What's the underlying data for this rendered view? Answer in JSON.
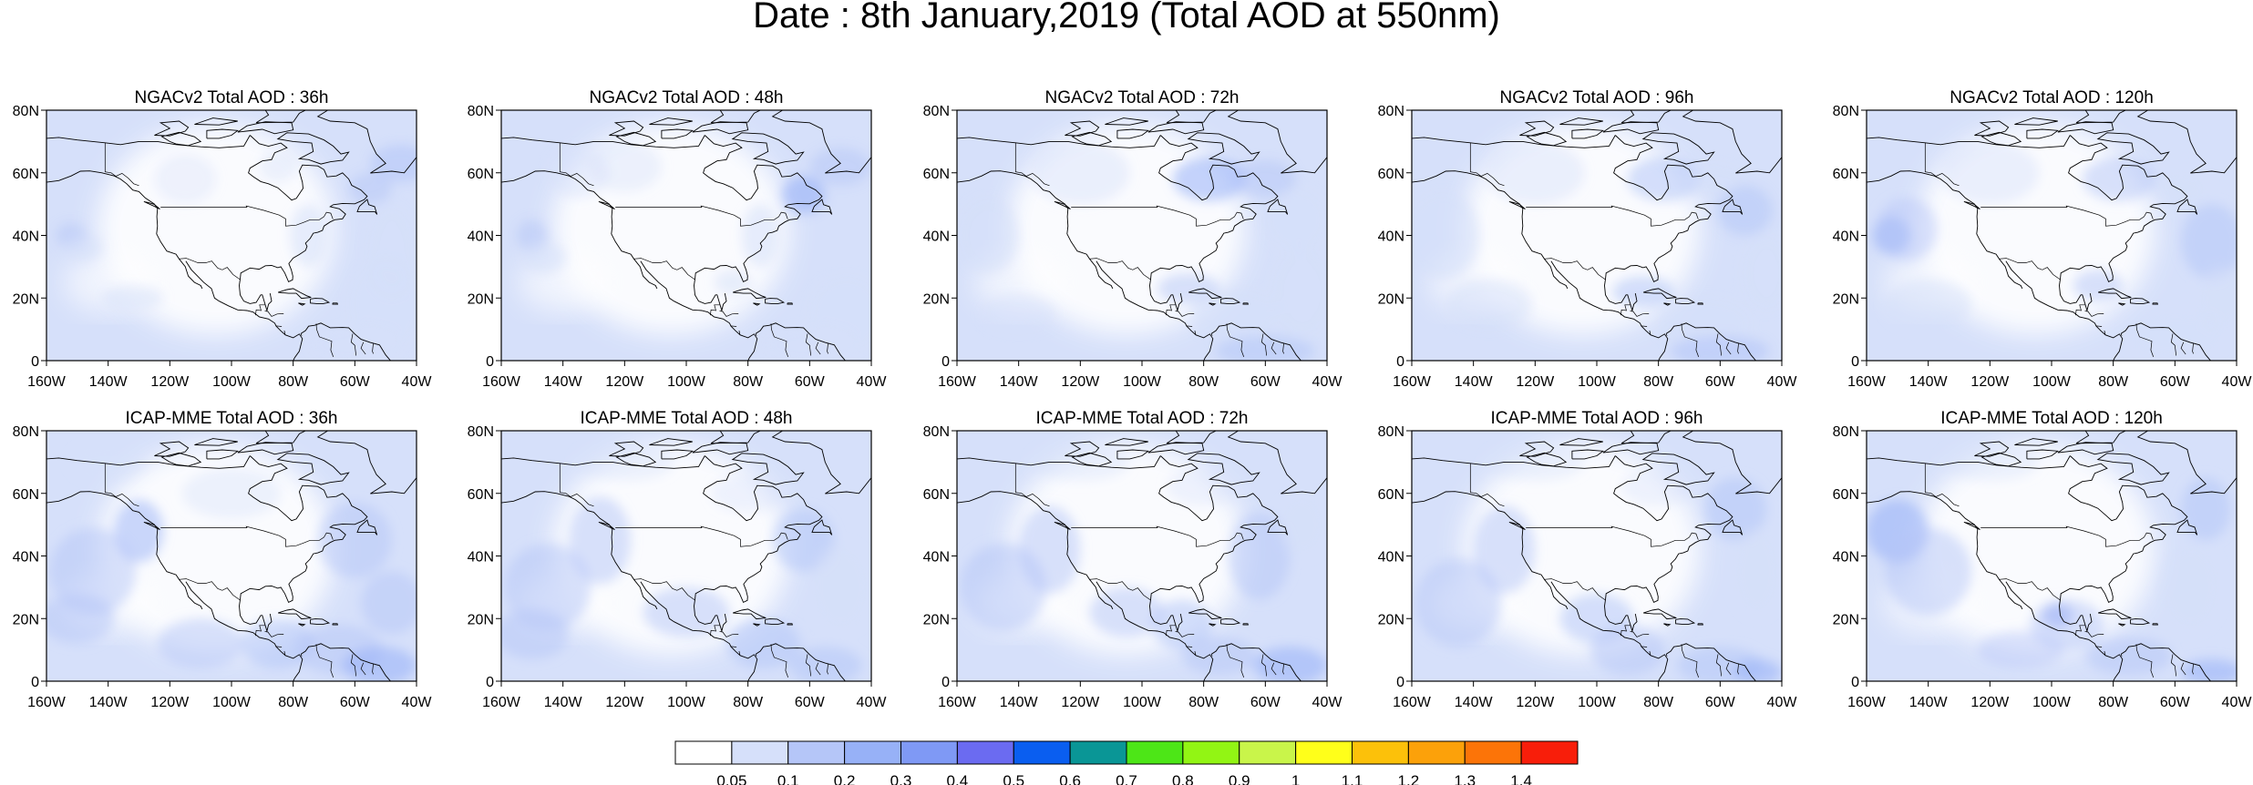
{
  "title": "Date : 8th January,2019 (Total AOD at 550nm)",
  "panels": [
    {
      "title": "NGACv2 Total AOD : 36h",
      "model": "NGACv2",
      "lead_h": 36
    },
    {
      "title": "NGACv2 Total AOD : 48h",
      "model": "NGACv2",
      "lead_h": 48
    },
    {
      "title": "NGACv2 Total AOD : 72h",
      "model": "NGACv2",
      "lead_h": 72
    },
    {
      "title": "NGACv2 Total AOD : 96h",
      "model": "NGACv2",
      "lead_h": 96
    },
    {
      "title": "NGACv2 Total AOD : 120h",
      "model": "NGACv2",
      "lead_h": 120
    },
    {
      "title": "ICAP-MME Total AOD : 36h",
      "model": "ICAP-MME",
      "lead_h": 36
    },
    {
      "title": "ICAP-MME Total AOD : 48h",
      "model": "ICAP-MME",
      "lead_h": 48
    },
    {
      "title": "ICAP-MME Total AOD : 72h",
      "model": "ICAP-MME",
      "lead_h": 72
    },
    {
      "title": "ICAP-MME Total AOD : 96h",
      "model": "ICAP-MME",
      "lead_h": 96
    },
    {
      "title": "ICAP-MME Total AOD : 120h",
      "model": "ICAP-MME",
      "lead_h": 120
    }
  ],
  "map": {
    "lon_range": [
      -160,
      -40
    ],
    "lat_range": [
      0,
      80
    ],
    "lon_ticks": [
      "160W",
      "140W",
      "120W",
      "100W",
      "80W",
      "60W",
      "40W"
    ],
    "lat_ticks": [
      "0",
      "20N",
      "40N",
      "60N",
      "80N"
    ]
  },
  "colorbar": {
    "labels": [
      "0.05",
      "0.1",
      "0.2",
      "0.3",
      "0.4",
      "0.5",
      "0.6",
      "0.7",
      "0.8",
      "0.9",
      "1",
      "1.1",
      "1.2",
      "1.3",
      "1.4"
    ],
    "colors": [
      "#ffffff",
      "#d6e0fa",
      "#b5c6f8",
      "#97b1f7",
      "#7f99f5",
      "#6b6bf1",
      "#0a5ef0",
      "#0a9696",
      "#4de617",
      "#92f514",
      "#c9f54a",
      "#ffff1a",
      "#fcc10a",
      "#fca10a",
      "#fc7408",
      "#f81e0a"
    ]
  }
}
